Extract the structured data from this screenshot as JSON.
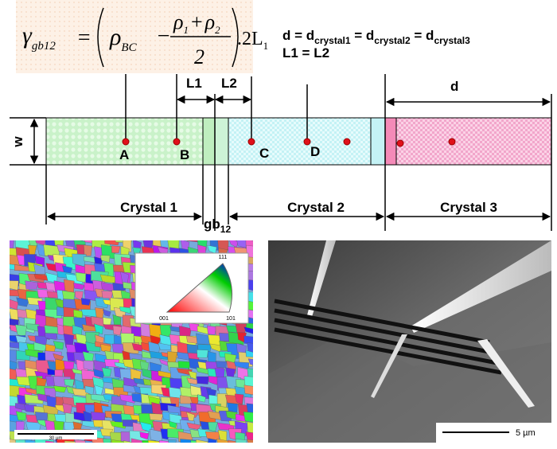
{
  "equation": {
    "lhs": "γ",
    "lhs_sub": "gb12",
    "equals": "=",
    "rho": "ρ",
    "rho_sub": "BC",
    "minus": "−",
    "sub_1": "1",
    "plus": "+",
    "sub_2": "2",
    "denominator": "2",
    "factor": ".2L",
    "factor_sub": "1"
  },
  "relations": {
    "line1_parts": [
      "d = d",
      "crystal1",
      " = d",
      "crystal2",
      " = d",
      "crystal3"
    ],
    "line2": "L1 = L2"
  },
  "dimensions": {
    "l1": "L1",
    "l2": "L2",
    "d": "d",
    "w": "w"
  },
  "points": [
    "A",
    "B",
    "C",
    "D"
  ],
  "crystals": [
    "Crystal 1",
    "Crystal 2",
    "Crystal 3"
  ],
  "grain_boundary": {
    "text": "gb",
    "sub": "12"
  },
  "ebsd": {
    "pole_top": "111",
    "pole_left": "001",
    "pole_right": "101",
    "scale": "30 µm"
  },
  "sem": {
    "scale": "5 µm"
  }
}
